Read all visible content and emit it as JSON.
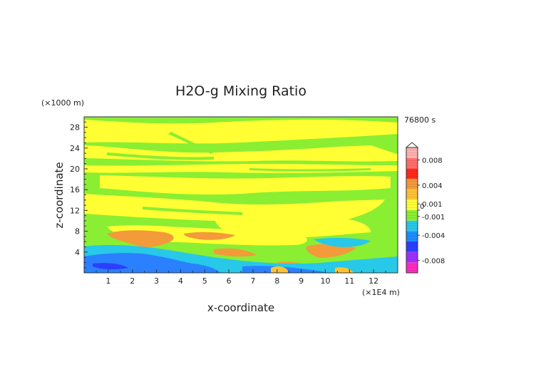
{
  "chart_data": {
    "type": "heatmap",
    "title": "H2O-g Mixing Ratio",
    "xlabel": "x-coordinate",
    "ylabel": "z-coordinate",
    "x_unit": "(×1E4 m)",
    "y_unit": "(×1000 m)",
    "time_label": "76800 s",
    "xlim": [
      0,
      13
    ],
    "ylim": [
      0,
      30
    ],
    "x_ticks": [
      "1",
      "2",
      "3",
      "4",
      "5",
      "6",
      "7",
      "8",
      "9",
      "10",
      "11",
      "12"
    ],
    "y_ticks": [
      "4",
      "8",
      "12",
      "16",
      "20",
      "24",
      "28"
    ],
    "colorbar": {
      "range": [
        -0.01,
        0.01
      ],
      "labels": [
        "0.008",
        "0.004",
        "0.001",
        "0",
        "-0.001",
        "-0.004",
        "-0.008"
      ],
      "colors": [
        "#ff2ac0",
        "#a030ff",
        "#2a40ff",
        "#1d8dff",
        "#27c8e8",
        "#8aee33",
        "#ffff33",
        "#ffc233",
        "#f39a3a",
        "#ff2a1a",
        "#ff6e6e",
        "#ffb1b1"
      ]
    },
    "field_regions": [
      {
        "level": "background",
        "value": 0.0,
        "color": "#8aee33"
      },
      {
        "level": "yellow-bands",
        "value": 0.001,
        "color": "#ffff33"
      },
      {
        "level": "orange-patches",
        "value": 0.003,
        "color": "#f39a3a"
      },
      {
        "level": "cyan-lower-layer",
        "value": -0.001,
        "color": "#27c8e8"
      },
      {
        "level": "blue-surface-layer",
        "value": -0.003,
        "color": "#2a80ff"
      }
    ]
  }
}
